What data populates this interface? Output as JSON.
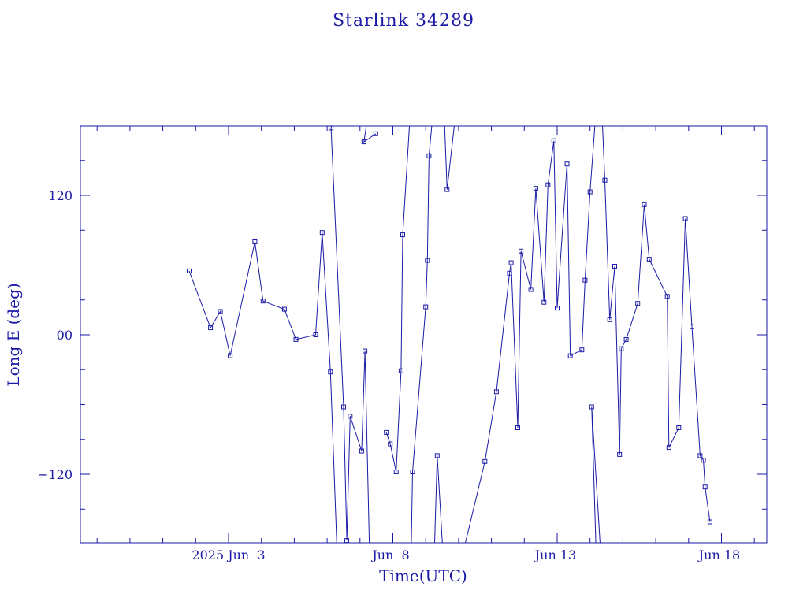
{
  "chart_data": {
    "type": "line",
    "title": "Starlink 34289",
    "xlabel": "Time(UTC)",
    "ylabel": "Long E (deg)",
    "x_tick_labels": [
      "2025 Jun  3",
      "Jun  8",
      "Jun 13",
      "Jun 18"
    ],
    "y_tick_labels": [
      "120",
      "00",
      "−120"
    ],
    "xlim_days_jun": [
      -1.45,
      19.4
    ],
    "ylim": [
      -180,
      180
    ],
    "marker": "square",
    "line_color": "#1a1aa6",
    "grid": false,
    "series": [
      {
        "values_note_x_is_june_day": "",
        "points": [
          [
            1.8,
            55
          ],
          [
            2.45,
            6
          ],
          [
            2.75,
            20
          ],
          [
            3.05,
            -18
          ],
          [
            3.8,
            80
          ],
          [
            4.05,
            29
          ],
          [
            4.7,
            22
          ],
          [
            5.05,
            -4
          ],
          [
            5.65,
            0
          ],
          [
            5.85,
            88
          ],
          [
            6.1,
            -32
          ],
          [
            6.32,
            -200
          ],
          [
            6.32,
            200
          ],
          [
            6.12,
            178
          ],
          [
            6.5,
            -62
          ],
          [
            6.6,
            -177
          ],
          [
            6.7,
            -70
          ],
          [
            7.05,
            -100
          ],
          [
            7.15,
            -14
          ],
          [
            7.3,
            -200
          ],
          [
            7.3,
            200
          ],
          [
            7.12,
            166
          ],
          [
            7.48,
            173
          ],
          [
            7.8,
            -84
          ],
          [
            7.92,
            -94
          ],
          [
            8.1,
            -118
          ],
          [
            8.25,
            -31
          ],
          [
            8.3,
            86
          ],
          [
            8.55,
            200
          ],
          [
            8.55,
            -200
          ],
          [
            8.6,
            -118
          ],
          [
            9.0,
            24
          ],
          [
            9.05,
            64
          ],
          [
            9.1,
            154
          ],
          [
            9.25,
            200
          ],
          [
            9.25,
            -200
          ],
          [
            9.35,
            -104
          ],
          [
            9.55,
            -200
          ],
          [
            9.55,
            200
          ],
          [
            9.65,
            125
          ],
          [
            9.95,
            200
          ],
          [
            9.95,
            -200
          ],
          [
            10.2,
            -180
          ],
          [
            10.8,
            -109
          ],
          [
            11.15,
            -49
          ],
          [
            11.55,
            53
          ],
          [
            11.6,
            62
          ],
          [
            11.8,
            -80
          ],
          [
            11.9,
            72
          ],
          [
            12.2,
            39
          ],
          [
            12.35,
            126
          ],
          [
            12.6,
            28
          ],
          [
            12.72,
            129
          ],
          [
            12.9,
            167
          ],
          [
            13.0,
            23
          ],
          [
            13.3,
            147
          ],
          [
            13.4,
            -18
          ],
          [
            13.75,
            -13
          ],
          [
            13.85,
            47
          ],
          [
            14.0,
            123
          ],
          [
            14.2,
            200
          ],
          [
            14.2,
            -200
          ],
          [
            14.05,
            -62
          ],
          [
            14.35,
            -200
          ],
          [
            14.35,
            200
          ],
          [
            14.45,
            133
          ],
          [
            14.6,
            13
          ],
          [
            14.75,
            59
          ],
          [
            14.9,
            -103
          ],
          [
            14.95,
            -12
          ],
          [
            15.1,
            -4
          ],
          [
            15.45,
            27
          ],
          [
            15.65,
            112
          ],
          [
            15.8,
            65
          ],
          [
            16.35,
            33
          ],
          [
            16.4,
            -97
          ],
          [
            16.7,
            -80
          ],
          [
            16.9,
            100
          ],
          [
            17.1,
            7
          ],
          [
            17.35,
            -104
          ],
          [
            17.45,
            -108
          ],
          [
            17.5,
            -131
          ],
          [
            17.65,
            -161
          ]
        ]
      }
    ]
  }
}
